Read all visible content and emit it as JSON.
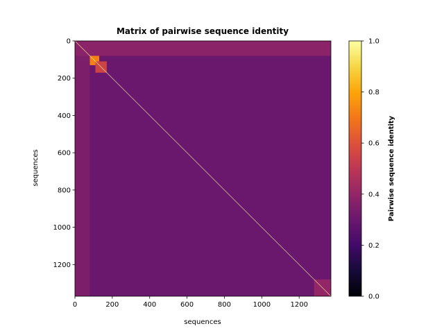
{
  "chart_data": {
    "type": "heatmap",
    "title": "Matrix of pairwise sequence identity",
    "xlabel": "sequences",
    "ylabel": "sequences",
    "n_sequences": 1370,
    "xlim": [
      0,
      1370
    ],
    "ylim": [
      1370,
      0
    ],
    "x_ticks": [
      0,
      200,
      400,
      600,
      800,
      1000,
      1200
    ],
    "y_ticks": [
      0,
      200,
      400,
      600,
      800,
      1000,
      1200
    ],
    "x_tick_labels": [
      "0",
      "200",
      "400",
      "600",
      "800",
      "1000",
      "1200"
    ],
    "y_tick_labels": [
      "0",
      "200",
      "400",
      "600",
      "800",
      "1000",
      "1200"
    ],
    "colormap": "inferno",
    "colorbar": {
      "label": "Pairwise sequence identity",
      "range": [
        0.0,
        1.0
      ],
      "ticks": [
        0.0,
        0.2,
        0.4,
        0.6,
        0.8,
        1.0
      ],
      "tick_labels": [
        "0.0",
        "0.2",
        "0.4",
        "0.6",
        "0.8",
        "1.0"
      ]
    },
    "background_identity": 0.3,
    "diagonal_identity": 1.0,
    "blocks": [
      {
        "rows": [
          0,
          80
        ],
        "cols": [
          0,
          1370
        ],
        "identity": 0.38
      },
      {
        "rows": [
          80,
          110
        ],
        "cols": [
          80,
          130
        ],
        "identity": 0.72
      },
      {
        "rows": [
          110,
          170
        ],
        "cols": [
          110,
          170
        ],
        "identity": 0.55
      },
      {
        "rows": [
          1280,
          1370
        ],
        "cols": [
          1280,
          1370
        ],
        "identity": 0.4
      }
    ]
  }
}
